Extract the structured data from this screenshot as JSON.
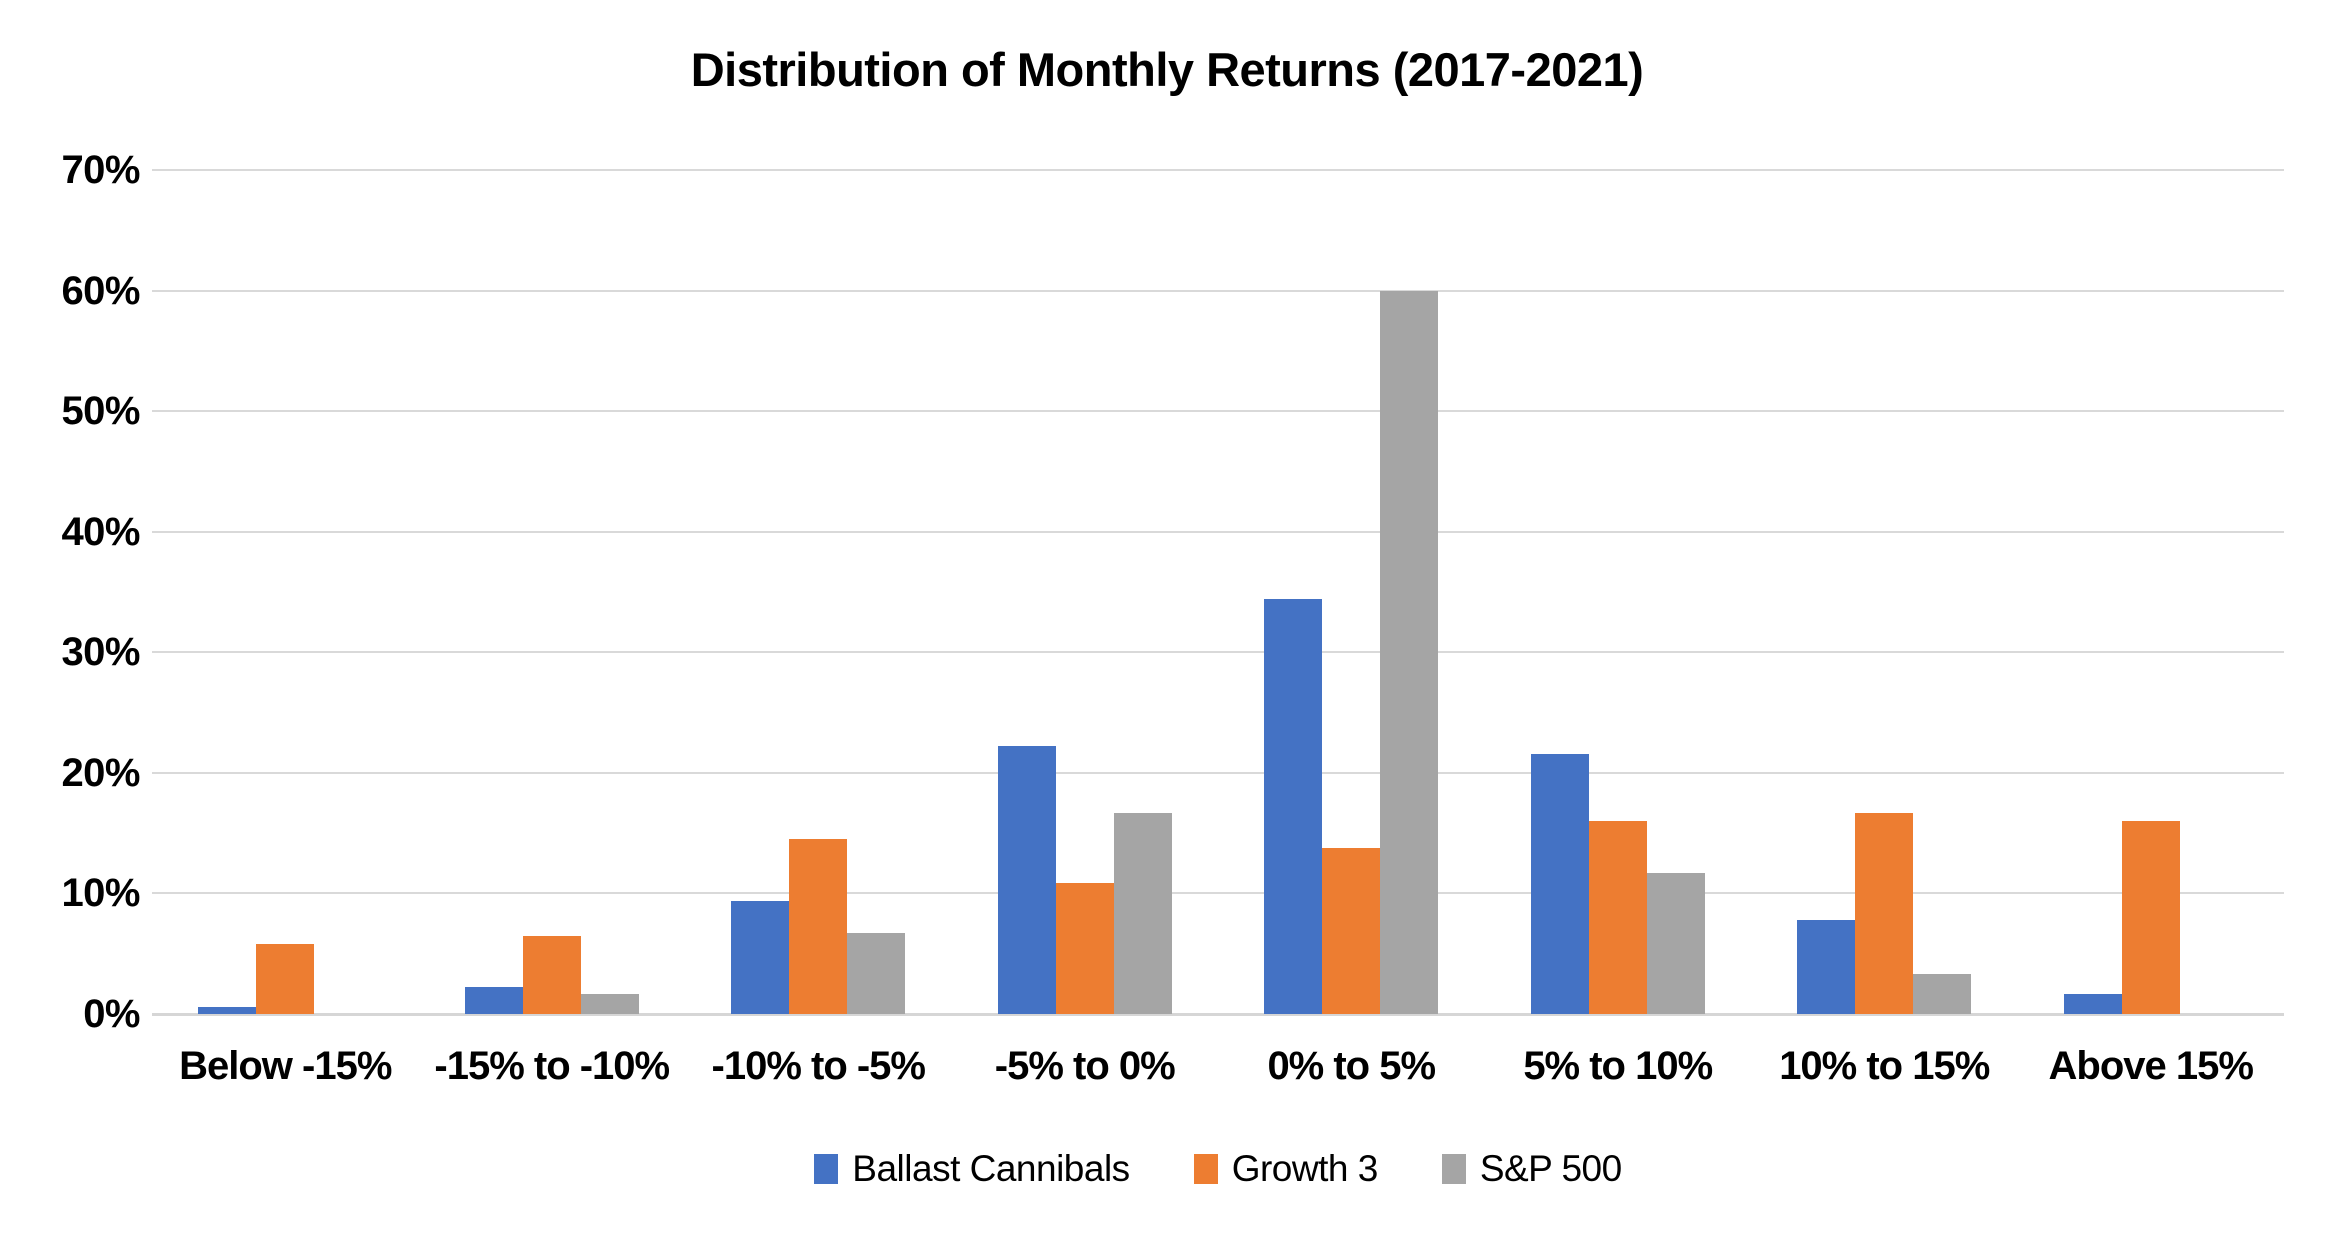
{
  "chart_data": {
    "type": "bar",
    "title": "Distribution of Monthly Returns (2017-2021)",
    "categories": [
      "Below -15%",
      "-15% to -10%",
      "-10% to -5%",
      "-5% to 0%",
      "0% to 5%",
      "5% to 10%",
      "10% to 15%",
      "Above 15%"
    ],
    "series": [
      {
        "name": "Ballast Cannibals",
        "color": "#4472C4",
        "values": [
          0.6,
          2.2,
          9.4,
          22.2,
          34.4,
          21.6,
          7.8,
          1.7
        ]
      },
      {
        "name": "Growth 3",
        "color": "#ED7D31",
        "values": [
          5.8,
          6.5,
          14.5,
          10.9,
          13.8,
          16.0,
          16.7,
          16.0
        ]
      },
      {
        "name": "S&P 500",
        "color": "#A5A5A5",
        "values": [
          0.0,
          1.7,
          6.7,
          16.7,
          60.0,
          11.7,
          3.3,
          0.0
        ]
      }
    ],
    "y_ticks": [
      "0%",
      "10%",
      "20%",
      "30%",
      "40%",
      "50%",
      "60%",
      "70%"
    ],
    "ylim": [
      0,
      70
    ],
    "xlabel": "",
    "ylabel": "",
    "grid": true,
    "legend_position": "bottom"
  },
  "colors": {
    "background": "#FFFFFF",
    "gridline": "#D9D9D9",
    "axis_line": "#D6D6D6",
    "text": "#000000"
  }
}
